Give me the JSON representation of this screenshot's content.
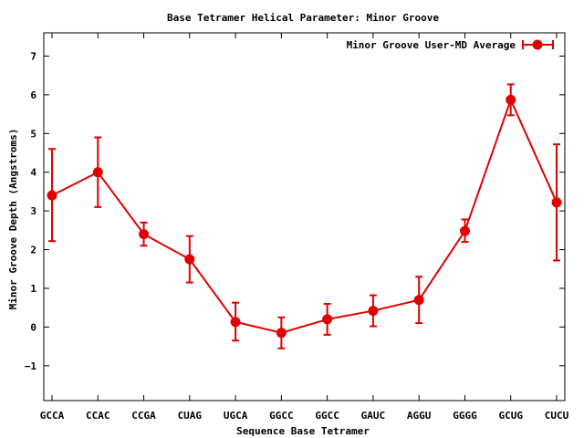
{
  "chart_data": {
    "type": "line",
    "title": "Base Tetramer Helical Parameter: Minor Groove",
    "xlabel": "Sequence Base Tetramer",
    "ylabel": "Minor Groove Depth (Angstroms)",
    "categories": [
      "GCCA",
      "CCAC",
      "CCGA",
      "CUAG",
      "UGCA",
      "GGCC",
      "GGCC",
      "GAUC",
      "AGGU",
      "GGGG",
      "GCUG",
      "CUCU"
    ],
    "ylim": [
      -1.9,
      7.6
    ],
    "yticks": [
      -1,
      0,
      1,
      2,
      3,
      4,
      5,
      6,
      7
    ],
    "grid": false,
    "legend_position": "top-right",
    "series": [
      {
        "name": "Minor Groove User-MD Average",
        "color": "#e00000",
        "values": [
          3.4,
          4.0,
          2.4,
          1.75,
          0.13,
          -0.15,
          0.2,
          0.42,
          0.7,
          2.48,
          5.87,
          3.22
        ],
        "error_low": [
          2.22,
          3.1,
          2.1,
          1.15,
          -0.35,
          -0.55,
          -0.2,
          0.02,
          0.1,
          2.2,
          5.47,
          1.72
        ],
        "error_high": [
          4.6,
          4.9,
          2.7,
          2.35,
          0.63,
          0.25,
          0.6,
          0.82,
          1.3,
          2.78,
          6.27,
          4.72
        ]
      }
    ]
  }
}
